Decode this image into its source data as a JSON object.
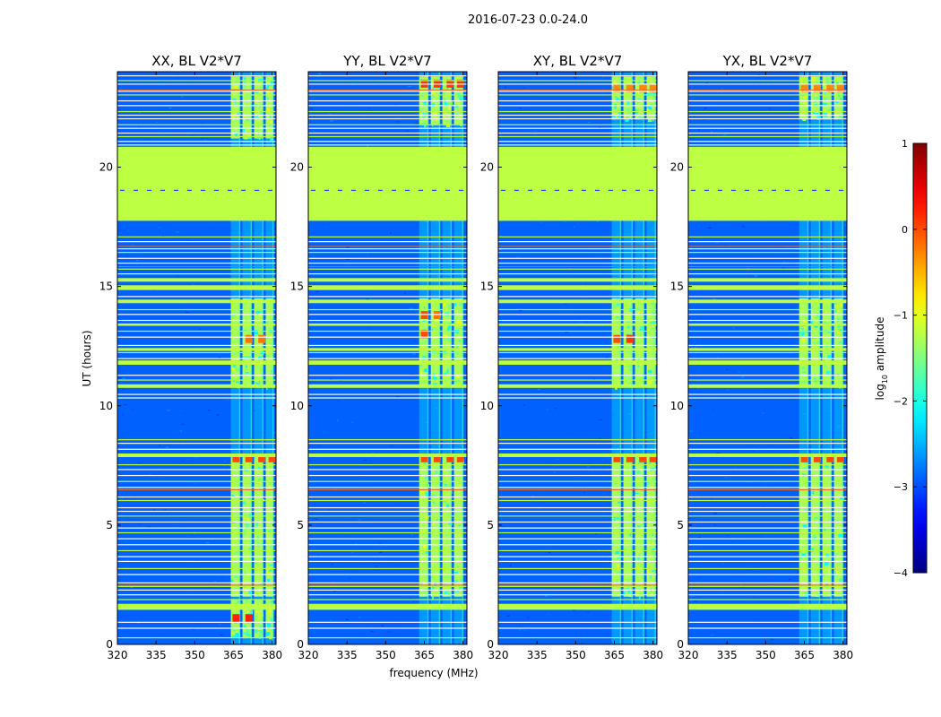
{
  "figure": {
    "suptitle": "2016-07-23 0.0-24.0",
    "xlabel": "frequency (MHz)",
    "ylabel": "UT (hours)"
  },
  "colorbar": {
    "label": "log",
    "label_sub": "10",
    "label_tail": " amplitude",
    "range": [
      -4,
      1
    ],
    "ticks": [
      1,
      0,
      -1,
      -2,
      -3,
      -4
    ],
    "tick_labels": [
      "1",
      "0",
      "−1",
      "−2",
      "−3",
      "−4"
    ],
    "colormap": "jet"
  },
  "chart_data": {
    "type": "heatmap",
    "x_range_mhz": [
      320,
      381.5
    ],
    "y_range_hours": [
      0,
      24
    ],
    "x_ticks": [
      320,
      335,
      350,
      365,
      380
    ],
    "y_ticks": [
      0,
      5,
      10,
      15,
      20
    ],
    "background_level": -2.9,
    "flag_level": -1.2,
    "panels": [
      {
        "title": "XX, BL V2*V7",
        "signal_columns_mhz": [
          [
            364,
            367.5
          ],
          [
            368.5,
            372
          ],
          [
            373,
            376.5
          ],
          [
            377.5,
            380.5
          ]
        ],
        "strong_spans": [
          [
            0.3,
            1.9
          ],
          [
            2.0,
            7.9
          ],
          [
            10.8,
            14.5
          ],
          [
            21.2,
            23.8
          ]
        ],
        "hot_spots": [
          [
            366,
            1.1,
            0.2
          ],
          [
            371,
            1.1,
            0.2
          ],
          [
            371,
            12.8,
            -0.2
          ],
          [
            376,
            12.8,
            -0.2
          ],
          [
            366,
            7.8,
            0.0
          ],
          [
            371,
            7.8,
            0.0
          ],
          [
            376,
            7.8,
            0.0
          ],
          [
            380,
            7.8,
            0.0
          ]
        ]
      },
      {
        "title": "YY, BL V2*V7",
        "signal_columns_mhz": [
          [
            363,
            366.5
          ],
          [
            367.5,
            371
          ],
          [
            372,
            375.5
          ],
          [
            376.5,
            380
          ]
        ],
        "strong_spans": [
          [
            2.0,
            7.9
          ],
          [
            10.8,
            14.5
          ],
          [
            21.8,
            23.8
          ]
        ],
        "hot_spots": [
          [
            365,
            13.0,
            0.0
          ],
          [
            365,
            13.8,
            0.0
          ],
          [
            370,
            13.8,
            -0.2
          ],
          [
            365,
            7.8,
            0.0
          ],
          [
            370,
            7.8,
            0.0
          ],
          [
            375,
            7.8,
            0.0
          ],
          [
            379,
            7.8,
            0.0
          ],
          [
            365,
            23.5,
            0.1
          ],
          [
            370,
            23.5,
            0.1
          ],
          [
            375,
            23.5,
            0.1
          ],
          [
            379,
            23.5,
            0.1
          ]
        ]
      },
      {
        "title": "XY, BL V2*V7",
        "signal_columns_mhz": [
          [
            364,
            367.5
          ],
          [
            368.5,
            372
          ],
          [
            373,
            376.5
          ],
          [
            377.5,
            381
          ]
        ],
        "strong_spans": [
          [
            2.0,
            7.9
          ],
          [
            10.8,
            14.5
          ],
          [
            22.0,
            23.8
          ]
        ],
        "hot_spots": [
          [
            366,
            12.8,
            0.0
          ],
          [
            371,
            12.8,
            0.1
          ],
          [
            366,
            7.8,
            0.0
          ],
          [
            371,
            7.8,
            0.0
          ],
          [
            376,
            7.8,
            0.0
          ],
          [
            380,
            7.8,
            0.0
          ],
          [
            366,
            23.3,
            -0.3
          ],
          [
            371,
            23.3,
            -0.3
          ],
          [
            376,
            23.3,
            -0.3
          ],
          [
            380,
            23.3,
            -0.3
          ]
        ]
      },
      {
        "title": "YX, BL V2*V7",
        "signal_columns_mhz": [
          [
            363,
            366.5
          ],
          [
            367.5,
            371
          ],
          [
            372,
            375.5
          ],
          [
            376.5,
            380
          ]
        ],
        "strong_spans": [
          [
            2.0,
            7.9
          ],
          [
            10.8,
            14.5
          ],
          [
            22.0,
            23.8
          ]
        ],
        "hot_spots": [
          [
            365,
            7.8,
            0.0
          ],
          [
            370,
            7.8,
            0.0
          ],
          [
            375,
            7.8,
            0.0
          ],
          [
            379,
            7.8,
            0.0
          ],
          [
            365,
            23.3,
            -0.3
          ],
          [
            370,
            23.3,
            -0.3
          ],
          [
            375,
            23.3,
            -0.3
          ],
          [
            379,
            23.3,
            -0.3
          ]
        ]
      }
    ],
    "flagged_spans_hours": [
      [
        17.75,
        20.85
      ],
      [
        11.72,
        11.9
      ],
      [
        1.45,
        1.7
      ],
      [
        7.85,
        8.0
      ],
      [
        10.75,
        10.9
      ],
      [
        14.3,
        14.45
      ],
      [
        14.85,
        15.05
      ],
      [
        15.2,
        15.35
      ],
      [
        12.3,
        12.42
      ],
      [
        13.35,
        13.45
      ]
    ],
    "flag_lines_hours": [
      0.3,
      0.7,
      0.95,
      1.9,
      2.1,
      2.3,
      2.45,
      2.6,
      2.95,
      3.2,
      3.5,
      3.7,
      3.95,
      4.2,
      4.45,
      4.7,
      4.9,
      5.15,
      5.4,
      5.6,
      5.75,
      6.05,
      6.2,
      6.6,
      6.85,
      7.1,
      7.35,
      7.55,
      8.2,
      8.45,
      8.6,
      10.35,
      10.5,
      11.1,
      11.3,
      12.0,
      12.25,
      12.55,
      12.9,
      13.15,
      13.6,
      13.85,
      14.05,
      14.6,
      15.55,
      15.75,
      16.0,
      16.2,
      16.45,
      16.6,
      16.9,
      17.1,
      20.95,
      21.1,
      21.3,
      21.45,
      21.65,
      21.8,
      22.05,
      22.2,
      22.35,
      22.6,
      22.8,
      23.05,
      23.2,
      23.5,
      23.65,
      23.85
    ],
    "red_lines_hours": [
      2.5,
      6.5,
      16.7,
      15.85,
      23.25
    ]
  }
}
